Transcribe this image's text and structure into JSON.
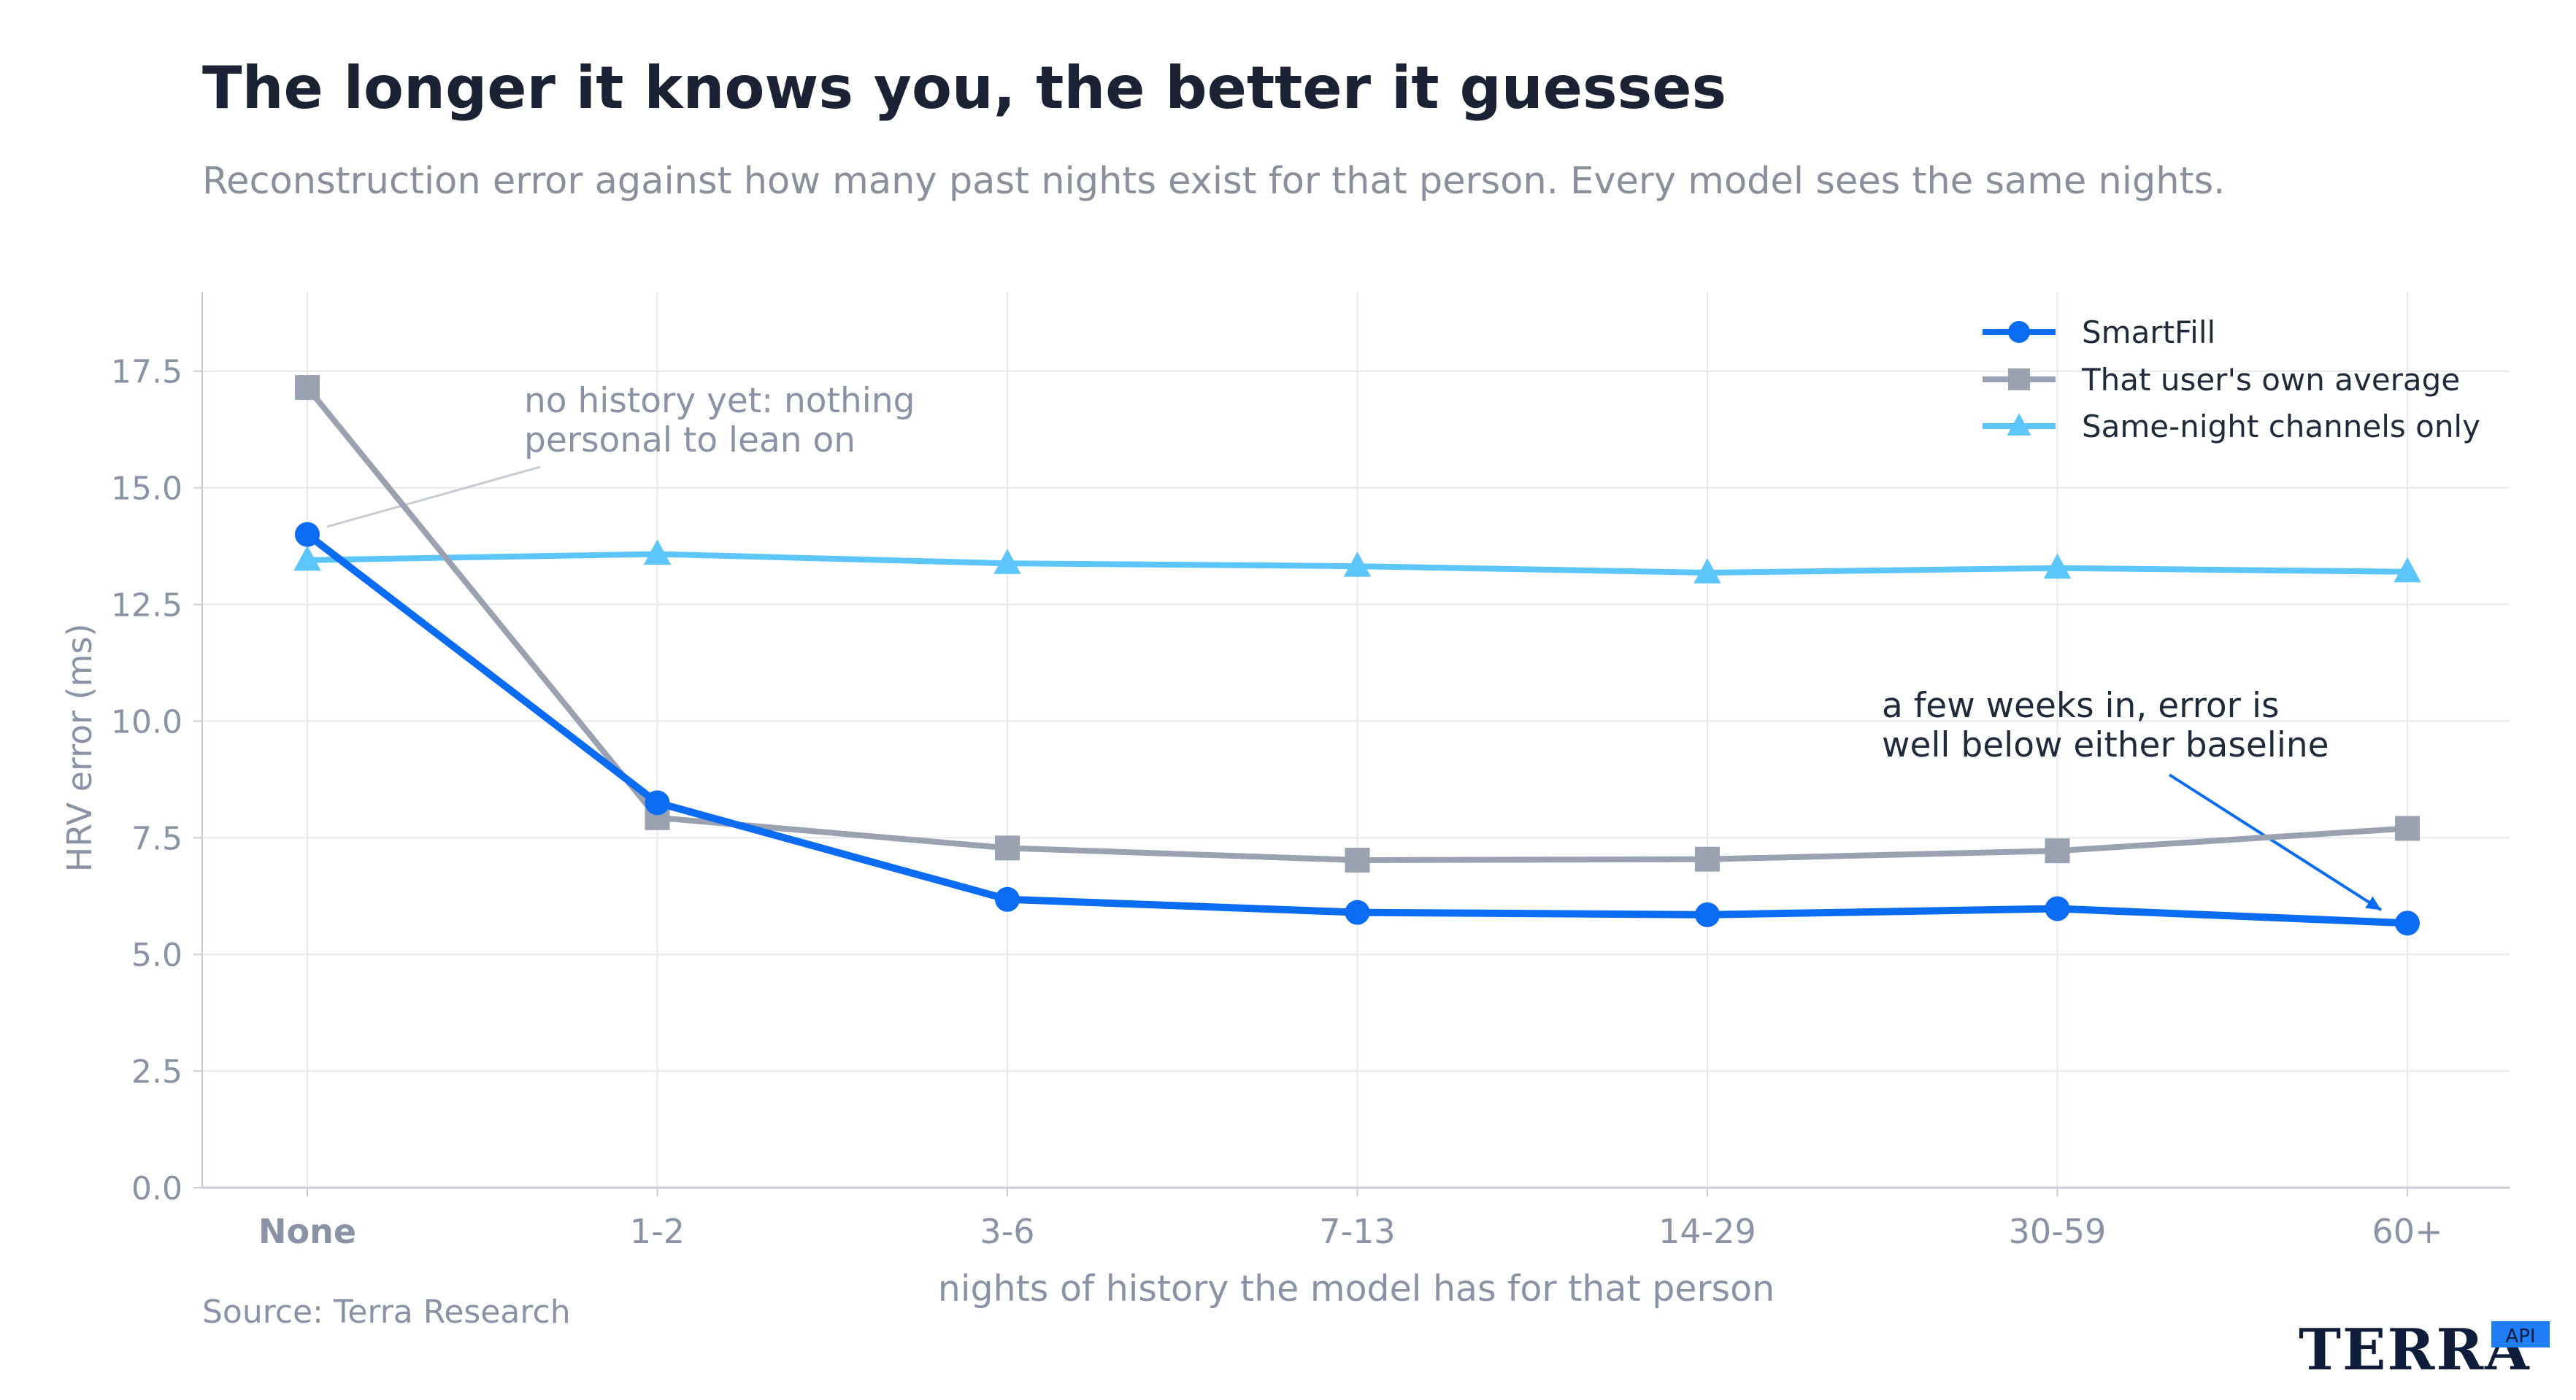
{
  "chart_data": {
    "type": "line",
    "title": "The longer it knows you, the better it guesses",
    "subtitle": "Reconstruction error against how many past nights exist for that person. Every model sees the same nights.",
    "xlabel": "nights of history the model has for that person",
    "ylabel": "HRV error (ms)",
    "categories": [
      "None",
      "1-2",
      "3-6",
      "7-13",
      "14-29",
      "30-59",
      "60+"
    ],
    "ylim": [
      0,
      19.2
    ],
    "yticks": [
      "0.0",
      "2.5",
      "5.0",
      "7.5",
      "10.0",
      "12.5",
      "15.0",
      "17.5"
    ],
    "grid": true,
    "legend_position": "top-right",
    "series": [
      {
        "name": "SmartFill",
        "color": "#0a6cf2",
        "marker": "circle",
        "values": [
          14.0,
          8.25,
          6.18,
          5.9,
          5.85,
          5.98,
          5.67
        ]
      },
      {
        "name": "That user's own average",
        "color": "#9aa1b1",
        "marker": "square",
        "values": [
          17.15,
          7.93,
          7.28,
          7.02,
          7.04,
          7.22,
          7.7
        ]
      },
      {
        "name": "Same-night channels only",
        "color": "#5cc5fa",
        "marker": "triangle",
        "values": [
          13.45,
          13.58,
          13.38,
          13.32,
          13.18,
          13.28,
          13.2
        ]
      }
    ],
    "annotations": [
      {
        "lines": [
          "no history yet: nothing",
          "personal to lean on"
        ],
        "category": "None",
        "series": "SmartFill"
      },
      {
        "lines": [
          "a few weeks in, error is",
          "well below either baseline"
        ],
        "category": "60+",
        "series": "SmartFill"
      }
    ]
  },
  "source": "Source: Terra Research",
  "brand": {
    "name": "TERRA",
    "badge": "API"
  }
}
